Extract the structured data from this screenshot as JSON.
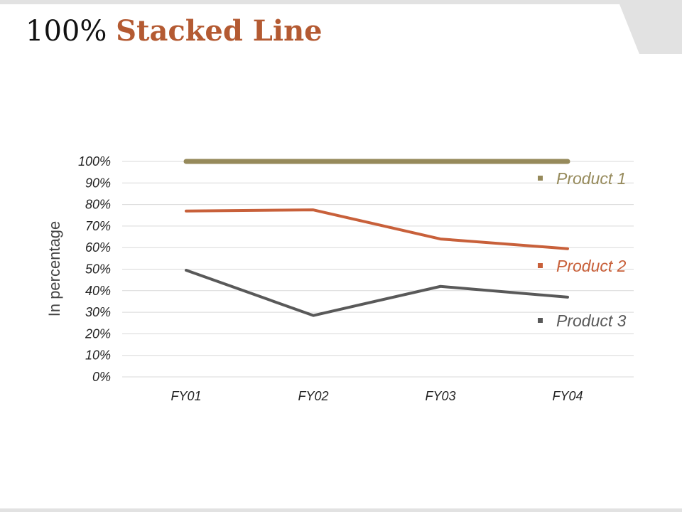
{
  "slide": {
    "title_prefix": "100%",
    "title_main": "Stacked Line"
  },
  "colors": {
    "product1": "#968a5b",
    "product2": "#c8603a",
    "product3": "#595959",
    "gridline": "#d9d9d9",
    "title_accent": "#b45a32",
    "frame": "#e2e2e2"
  },
  "chart_data": {
    "type": "line",
    "title": "100% Stacked Line",
    "categories": [
      "FY01",
      "FY02",
      "FY03",
      "FY04"
    ],
    "ylabel": "In percentage",
    "xlabel": "",
    "ylim": [
      0,
      100
    ],
    "y_ticks": [
      "0%",
      "10%",
      "20%",
      "30%",
      "40%",
      "50%",
      "60%",
      "70%",
      "80%",
      "90%",
      "100%"
    ],
    "grid": true,
    "legend_position": "right",
    "series": [
      {
        "name": "Product 1",
        "values": [
          100,
          100,
          100,
          100
        ]
      },
      {
        "name": "Product 2",
        "values": [
          77,
          77.5,
          64,
          59.5
        ]
      },
      {
        "name": "Product 3",
        "values": [
          49.5,
          28.5,
          42,
          37
        ]
      }
    ]
  }
}
